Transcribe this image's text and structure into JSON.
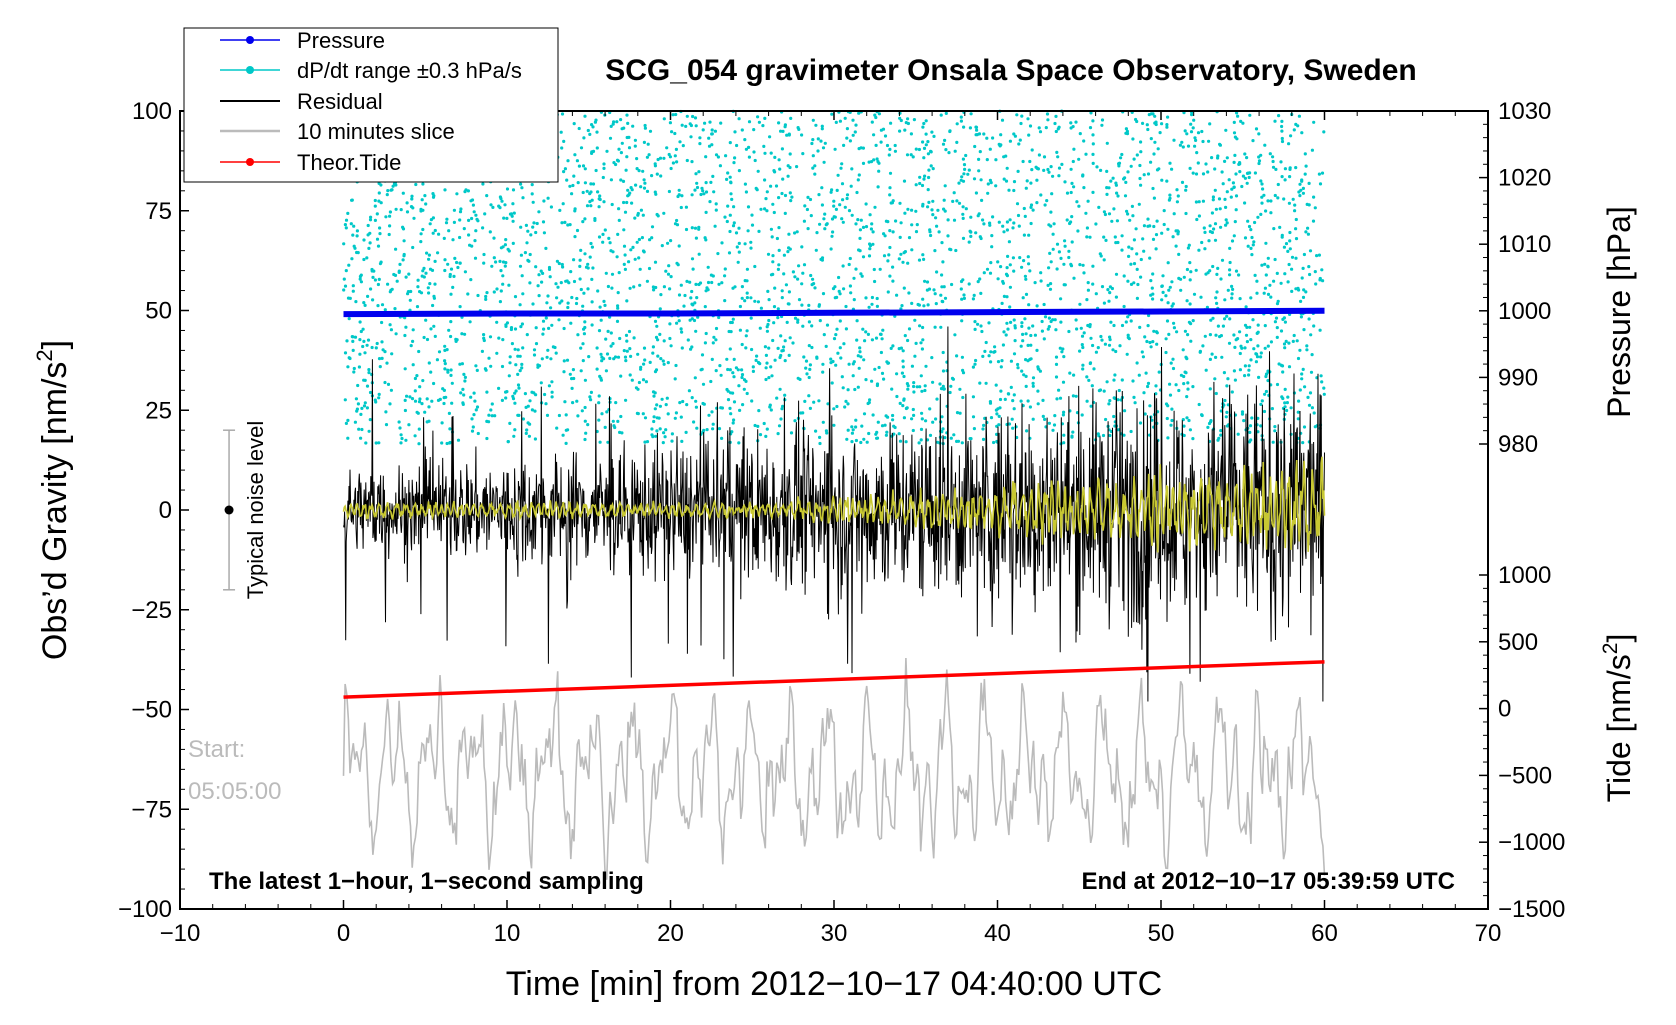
{
  "chart_data": {
    "type": "line",
    "title": "SCG_054 gravimeter Onsala Space Observatory, Sweden",
    "xlabel": "Time [min] from 2012−10−17 04:40:00 UTC",
    "ylabel_left": "Obs’d Gravity [nm/s",
    "ylabel_left_sup": "2",
    "ylabel_left_close": "]",
    "ylabel_right_pressure": "Pressure [hPa]",
    "ylabel_right_tide": "Tide [nm/s",
    "ylabel_right_tide_sup": "2",
    "ylabel_right_tide_close": "]",
    "xlim": [
      -10,
      70
    ],
    "ylim_left": [
      -100,
      100
    ],
    "ylim_pressure": [
      980,
      1030
    ],
    "ylim_tide": [
      -1500,
      1000
    ],
    "x_ticks": [
      "−10",
      "0",
      "10",
      "20",
      "30",
      "40",
      "50",
      "60",
      "70"
    ],
    "x_tick_values": [
      -10,
      0,
      10,
      20,
      30,
      40,
      50,
      60,
      70
    ],
    "y_left_ticks": [
      "100",
      "75",
      "50",
      "25",
      "0",
      "−25",
      "−50",
      "−75",
      "−100"
    ],
    "y_left_tick_values": [
      100,
      75,
      50,
      25,
      0,
      -25,
      -50,
      -75,
      -100
    ],
    "pressure_ticks": [
      "1030",
      "1020",
      "1010",
      "1000",
      "990",
      "980"
    ],
    "pressure_tick_values": [
      1030,
      1020,
      1010,
      1000,
      990,
      980
    ],
    "tide_ticks": [
      "1000",
      "500",
      "0",
      "−500",
      "−1000",
      "−1500"
    ],
    "tide_tick_values": [
      1000,
      500,
      0,
      -500,
      -1000,
      -1500
    ],
    "legend": [
      {
        "label": "Pressure",
        "color": "#0000ee",
        "marker": true
      },
      {
        "label": "dP/dt range ±0.3 hPa/s",
        "color": "#00c8c8",
        "marker": true
      },
      {
        "label": "Residual",
        "color": "#000000",
        "marker": false
      },
      {
        "label": "10 minutes slice",
        "color": "#bbbbbb",
        "marker": false
      },
      {
        "label": "Theor.Tide",
        "color": "#ff0000",
        "marker": true
      }
    ],
    "series": [
      {
        "name": "Pressure",
        "axis": "pressure",
        "x": [
          0,
          10,
          20,
          30,
          40,
          50,
          60
        ],
        "values": [
          999.5,
          999.6,
          999.6,
          999.7,
          999.8,
          999.9,
          1000.0
        ],
        "color": "#0000ee"
      },
      {
        "name": "Theor.Tide",
        "axis": "tide",
        "x": [
          0,
          60
        ],
        "values": [
          86,
          350
        ],
        "color": "#ff0000"
      },
      {
        "name": "Residual",
        "axis": "left",
        "x_range": [
          0,
          60
        ],
        "baseline": 0,
        "color": "#000000"
      },
      {
        "name": "dP/dt range ±0.3 hPa/s",
        "axis": "pressure",
        "x_range": [
          0,
          60
        ],
        "range": [
          980,
          1030
        ],
        "color": "#00c8c8"
      },
      {
        "name": "10 minutes slice",
        "axis": "left",
        "x_range": [
          0,
          60
        ],
        "center": -66,
        "color": "#bbbbbb"
      }
    ],
    "noise_bar": {
      "label": "Typical noise level",
      "x": -7,
      "y": 0,
      "low": -20,
      "high": 20
    },
    "start_label_1": "Start:",
    "start_label_2": "05:05:00",
    "footer_left": "The latest 1−hour, 1−second sampling",
    "footer_right": "End at 2012−10−17 05:39:59 UTC",
    "colors": {
      "pressure": "#0000ee",
      "dpdt": "#00c8c8",
      "residual": "#000000",
      "slice": "#bbbbbb",
      "tide": "#ff0000",
      "filtered": "#c8c832"
    }
  }
}
